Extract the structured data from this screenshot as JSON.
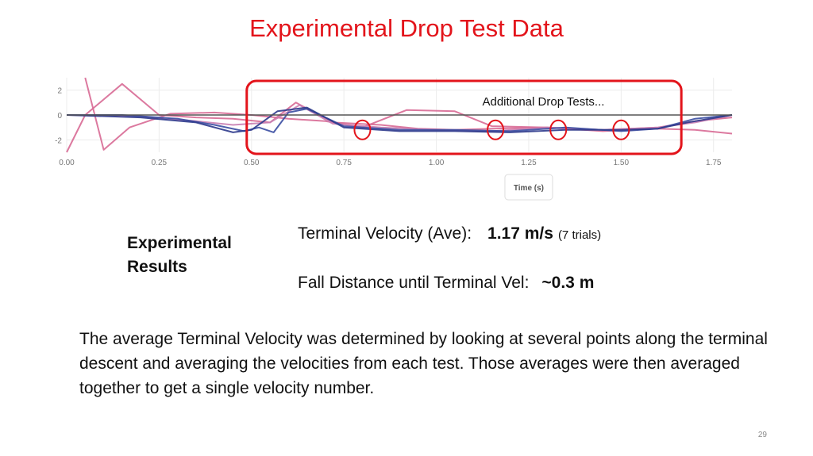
{
  "slide": {
    "title": "Experimental Drop Test Data",
    "page_number": "29"
  },
  "results": {
    "heading": "Experimental Results",
    "terminal_velocity_label": "Terminal Velocity (Ave):",
    "terminal_velocity_value": "1.17 m/s",
    "terminal_velocity_note": "(7 trials)",
    "fall_distance_label": "Fall Distance until Terminal Vel:",
    "fall_distance_value": "~0.3 m"
  },
  "body_text": "The average Terminal Velocity was determined by looking at several points along the terminal descent and averaging the velocities from each test.  Those averages were then averaged together to get a single velocity number.",
  "chart_data": {
    "type": "line",
    "xlabel": "Time (s)",
    "ylabel": "",
    "xlim": [
      0,
      1.8
    ],
    "ylim": [
      -3,
      3
    ],
    "x_ticks": [
      "0.00",
      "0.25",
      "0.50",
      "0.75",
      "1.00",
      "1.25",
      "1.50",
      "1.75"
    ],
    "y_ticks": [
      "2",
      "0",
      "-2"
    ],
    "grid": true,
    "zero_line": true,
    "annotation": {
      "text": "Additional Drop Tests...",
      "box_x_range": [
        0.5,
        1.65
      ],
      "circle_x": [
        0.8,
        1.16,
        1.33,
        1.5
      ],
      "circle_y": -1.2,
      "color": "#e3141b"
    },
    "series": [
      {
        "color": "#d86a95",
        "x": [
          0.0,
          0.05,
          0.15,
          0.25,
          0.35,
          0.45,
          0.55,
          0.62,
          0.72,
          0.85,
          0.95,
          1.05,
          1.15,
          1.3,
          1.45,
          1.6,
          1.7,
          1.8
        ],
        "y": [
          -3.0,
          0.0,
          2.5,
          0.0,
          -0.2,
          -0.3,
          -0.6,
          1.0,
          -0.6,
          -0.8,
          -1.1,
          -1.2,
          -1.1,
          -1.0,
          -1.3,
          -1.1,
          -1.2,
          -1.5
        ]
      },
      {
        "color": "#d86a95",
        "x": [
          0.05,
          0.1,
          0.17,
          0.28,
          0.4,
          0.5,
          0.6,
          0.7,
          0.8,
          0.92,
          1.05,
          1.15,
          1.3,
          1.45,
          1.6,
          1.7,
          1.8
        ],
        "y": [
          3.0,
          -2.8,
          -1.0,
          0.1,
          0.2,
          0.0,
          -0.3,
          -0.5,
          -1.0,
          0.4,
          0.3,
          -0.9,
          -1.0,
          -1.2,
          -1.0,
          -0.5,
          -0.2
        ]
      },
      {
        "color": "#c97fb3",
        "x": [
          0.0,
          0.2,
          0.35,
          0.45,
          0.55,
          0.63,
          0.72,
          0.85,
          1.0,
          1.15,
          1.3,
          1.45,
          1.6,
          1.7,
          1.8
        ],
        "y": [
          0.0,
          -0.1,
          -0.5,
          -0.8,
          -0.6,
          0.8,
          -0.7,
          -1.0,
          -1.2,
          -1.3,
          -1.0,
          -1.2,
          -1.0,
          -0.6,
          0.0
        ]
      },
      {
        "color": "#3a4ea2",
        "x": [
          0.0,
          0.15,
          0.3,
          0.4,
          0.48,
          0.52,
          0.56,
          0.6,
          0.65,
          0.75,
          0.9,
          1.05,
          1.2,
          1.35,
          1.5,
          1.6,
          1.7,
          1.8
        ],
        "y": [
          0.0,
          0.0,
          -0.3,
          -0.8,
          -1.3,
          -1.0,
          -1.4,
          0.2,
          0.5,
          -0.9,
          -1.2,
          -1.2,
          -1.3,
          -1.0,
          -1.3,
          -1.1,
          -0.3,
          0.0
        ]
      },
      {
        "color": "#2e3a8c",
        "x": [
          0.0,
          0.2,
          0.35,
          0.45,
          0.5,
          0.57,
          0.65,
          0.75,
          0.9,
          1.05,
          1.2,
          1.35,
          1.5,
          1.6,
          1.68,
          1.8
        ],
        "y": [
          0.0,
          -0.2,
          -0.6,
          -1.4,
          -1.2,
          0.3,
          0.6,
          -1.0,
          -1.3,
          -1.3,
          -1.4,
          -1.2,
          -1.2,
          -1.1,
          -0.6,
          0.0
        ]
      }
    ]
  }
}
